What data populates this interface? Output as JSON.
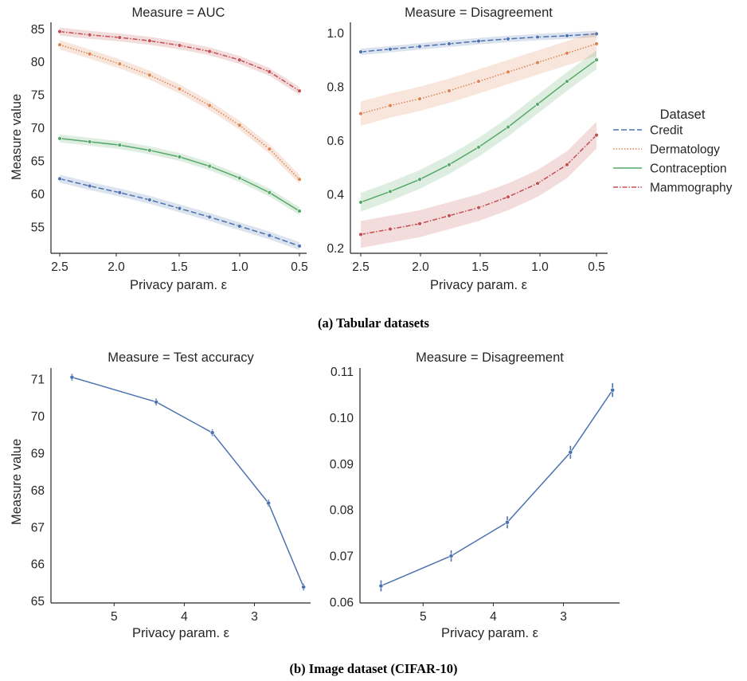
{
  "captions": {
    "a": "(a) Tabular datasets",
    "b": "(b) Image dataset (CIFAR-10)"
  },
  "legend": {
    "title": "Dataset",
    "entries": [
      {
        "label": "Credit",
        "color": "#4c72b0",
        "dash": "dashed"
      },
      {
        "label": "Dermatology",
        "color": "#dd8452",
        "dash": "dotted"
      },
      {
        "label": "Contraception",
        "color": "#55a868",
        "dash": "solid"
      },
      {
        "label": "Mammography",
        "color": "#c44e52",
        "dash": "dashdot"
      }
    ]
  },
  "chart_data": [
    {
      "type": "line",
      "title": "Measure = AUC",
      "xlabel": "Privacy param. ε",
      "ylabel": "Measure value",
      "x": [
        2.5,
        2.25,
        2.0,
        1.75,
        1.5,
        1.25,
        1.0,
        0.75,
        0.5
      ],
      "x_ticks": [
        "2.5",
        "2.0",
        "1.5",
        "1.0",
        "0.5"
      ],
      "y_ticks": [
        "55",
        "60",
        "65",
        "70",
        "75",
        "80",
        "85"
      ],
      "xlim": [
        2.5,
        0.5
      ],
      "ylim": [
        51,
        86
      ],
      "x_inverted": true,
      "grid": false,
      "series": [
        {
          "name": "Credit",
          "values": [
            62.3,
            61.2,
            60.2,
            59.1,
            57.8,
            56.5,
            55.1,
            53.7,
            52.1
          ]
        },
        {
          "name": "Dermatology",
          "values": [
            82.6,
            81.2,
            79.7,
            78.0,
            75.9,
            73.4,
            70.4,
            66.8,
            62.2
          ]
        },
        {
          "name": "Contraception",
          "values": [
            68.4,
            67.9,
            67.4,
            66.6,
            65.6,
            64.2,
            62.4,
            60.2,
            57.4
          ]
        },
        {
          "name": "Mammography",
          "values": [
            84.6,
            84.1,
            83.7,
            83.2,
            82.5,
            81.6,
            80.3,
            78.5,
            75.6
          ]
        }
      ],
      "band_width": [
        0.6,
        0.7,
        0.6,
        0.6
      ]
    },
    {
      "type": "line",
      "title": "Measure = Disagreement",
      "xlabel": "Privacy param. ε",
      "ylabel": "",
      "x": [
        2.5,
        2.25,
        2.0,
        1.75,
        1.5,
        1.25,
        1.0,
        0.75,
        0.5
      ],
      "x_ticks": [
        "2.5",
        "2.0",
        "1.5",
        "1.0",
        "0.5"
      ],
      "y_ticks": [
        "0.2",
        "0.4",
        "0.6",
        "0.8",
        "1.0"
      ],
      "xlim": [
        2.5,
        0.5
      ],
      "ylim": [
        0.18,
        1.04
      ],
      "x_inverted": true,
      "grid": false,
      "series": [
        {
          "name": "Credit",
          "values": [
            0.93,
            0.94,
            0.95,
            0.96,
            0.97,
            0.978,
            0.985,
            0.99,
            0.997
          ]
        },
        {
          "name": "Dermatology",
          "values": [
            0.7,
            0.73,
            0.755,
            0.785,
            0.82,
            0.855,
            0.89,
            0.925,
            0.96
          ]
        },
        {
          "name": "Contraception",
          "values": [
            0.37,
            0.41,
            0.455,
            0.51,
            0.575,
            0.65,
            0.735,
            0.82,
            0.9
          ]
        },
        {
          "name": "Mammography",
          "values": [
            0.25,
            0.27,
            0.29,
            0.32,
            0.35,
            0.39,
            0.44,
            0.51,
            0.62
          ]
        }
      ],
      "band_width": [
        0.012,
        0.045,
        0.035,
        0.05
      ]
    },
    {
      "type": "line",
      "title": "Measure = Test accuracy",
      "xlabel": "Privacy param. ε",
      "ylabel": "Measure value",
      "x": [
        5.6,
        4.4,
        3.6,
        2.8,
        2.3
      ],
      "x_ticks": [
        "5",
        "4",
        "3"
      ],
      "y_ticks": [
        "65",
        "66",
        "67",
        "68",
        "69",
        "70",
        "71"
      ],
      "xlim": [
        5.9,
        2.2
      ],
      "ylim": [
        64.95,
        71.3
      ],
      "x_inverted": true,
      "grid": false,
      "series": [
        {
          "values": [
            71.05,
            70.38,
            69.55,
            67.65,
            65.38
          ],
          "err": [
            0.09,
            0.09,
            0.09,
            0.09,
            0.09
          ]
        }
      ]
    },
    {
      "type": "line",
      "title": "Measure = Disagreement",
      "xlabel": "Privacy param. ε",
      "ylabel": "",
      "x": [
        5.6,
        4.6,
        3.8,
        2.9,
        2.3
      ],
      "x_ticks": [
        "5",
        "4",
        "3"
      ],
      "y_ticks": [
        "0.06",
        "0.07",
        "0.08",
        "0.09",
        "0.10",
        "0.11"
      ],
      "xlim": [
        5.9,
        2.2
      ],
      "ylim": [
        0.0598,
        0.1108
      ],
      "x_inverted": true,
      "grid": false,
      "series": [
        {
          "values": [
            0.0635,
            0.07,
            0.0773,
            0.0925,
            0.106
          ],
          "err": [
            0.0012,
            0.0012,
            0.0013,
            0.0014,
            0.0015
          ]
        }
      ]
    }
  ]
}
